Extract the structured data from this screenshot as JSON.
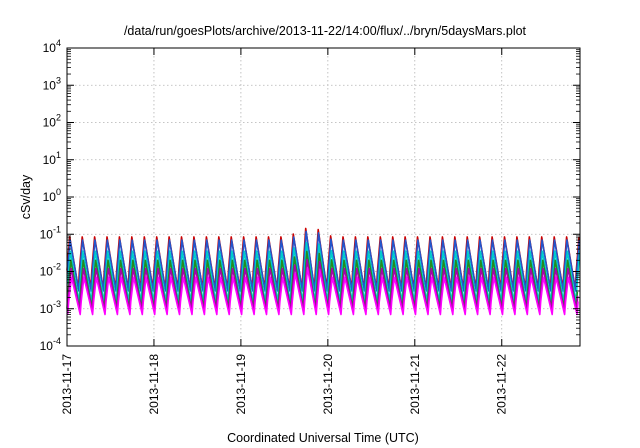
{
  "chart_data": {
    "type": "line",
    "title": "/data/run/goesPlots/archive/2013-11-22/14:00/flux/../bryn/5daysMars.plot",
    "xlabel": "Coordinated Universal Time (UTC)",
    "ylabel": "cSv/day",
    "y_scale": "log",
    "ylim": [
      0.0001,
      10000
    ],
    "y_ticks": [
      {
        "base": "10",
        "exp": "4"
      },
      {
        "base": "10",
        "exp": "3"
      },
      {
        "base": "10",
        "exp": "2"
      },
      {
        "base": "10",
        "exp": "1"
      },
      {
        "base": "10",
        "exp": "0"
      },
      {
        "base": "10",
        "exp": "-1"
      },
      {
        "base": "10",
        "exp": "-2"
      },
      {
        "base": "10",
        "exp": "-3"
      },
      {
        "base": "10",
        "exp": "-4"
      }
    ],
    "xlim_days": [
      0,
      5.9
    ],
    "x_ticks": [
      {
        "day": 0,
        "label": "2013-11-17"
      },
      {
        "day": 1,
        "label": "2013-11-18"
      },
      {
        "day": 2,
        "label": "2013-11-19"
      },
      {
        "day": 3,
        "label": "2013-11-20"
      },
      {
        "day": 4,
        "label": "2013-11-21"
      },
      {
        "day": 5,
        "label": "2013-11-22"
      }
    ],
    "grid": true,
    "oscillations_per_day": 7,
    "series": [
      {
        "color": "#cc0000",
        "peak": 0.085,
        "trough": 0.0035
      },
      {
        "color": "#2255cc",
        "peak": 0.07,
        "trough": 0.003
      },
      {
        "color": "#00cccc",
        "peak": 0.035,
        "trough": 0.0015
      },
      {
        "color": "#228b22",
        "peak": 0.02,
        "trough": 0.001
      },
      {
        "color": "#aa00aa",
        "peak": 0.012,
        "trough": 0.0009
      },
      {
        "color": "#ff00ff",
        "peak": 0.007,
        "trough": 0.0007
      }
    ],
    "event": {
      "start_day": 2.55,
      "end_day": 3.05,
      "peak": 0.16
    }
  }
}
